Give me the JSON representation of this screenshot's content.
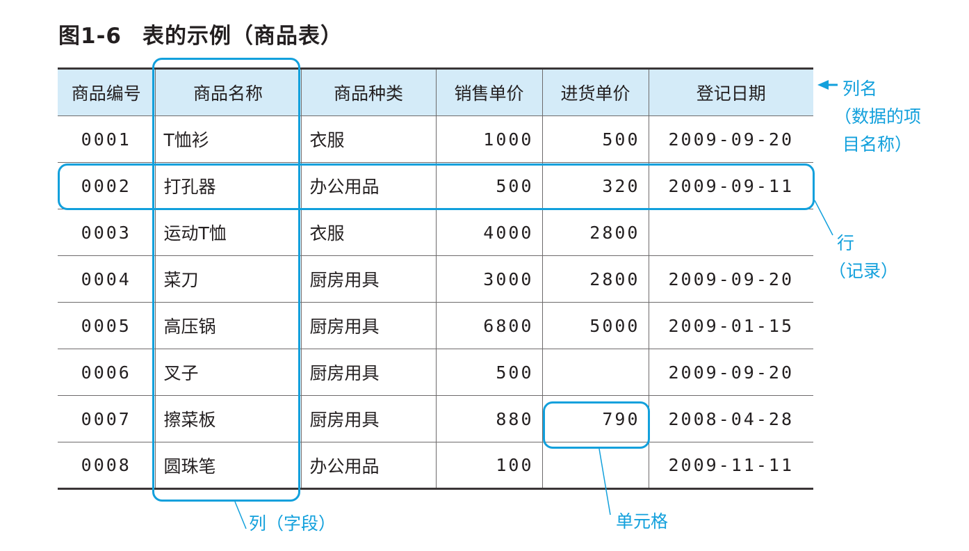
{
  "figure": {
    "number": "图1-6",
    "title": "表的示例（商品表）"
  },
  "table": {
    "headers": [
      "商品编号",
      "商品名称",
      "商品种类",
      "销售单价",
      "进货单价",
      "登记日期"
    ],
    "rows": [
      [
        "0001",
        "T恤衫",
        "衣服",
        "1000",
        "500",
        "2009-09-20"
      ],
      [
        "0002",
        "打孔器",
        "办公用品",
        "500",
        "320",
        "2009-09-11"
      ],
      [
        "0003",
        "运动T恤",
        "衣服",
        "4000",
        "2800",
        ""
      ],
      [
        "0004",
        "菜刀",
        "厨房用具",
        "3000",
        "2800",
        "2009-09-20"
      ],
      [
        "0005",
        "高压锅",
        "厨房用具",
        "6800",
        "5000",
        "2009-01-15"
      ],
      [
        "0006",
        "叉子",
        "厨房用具",
        "500",
        "",
        "2009-09-20"
      ],
      [
        "0007",
        "擦菜板",
        "厨房用具",
        "880",
        "790",
        "2008-04-28"
      ],
      [
        "0008",
        "圆珠笔",
        "办公用品",
        "100",
        "",
        "2009-11-11"
      ]
    ]
  },
  "annotations": {
    "column_name": "列名",
    "column_name_desc_1": "（数据的项",
    "column_name_desc_2": "目名称）",
    "row": "行",
    "row_desc": "（记录）",
    "column": "列（字段）",
    "cell": "单元格"
  },
  "colors": {
    "accent": "#12a0dc",
    "header_bg": "#d4ebf8"
  }
}
